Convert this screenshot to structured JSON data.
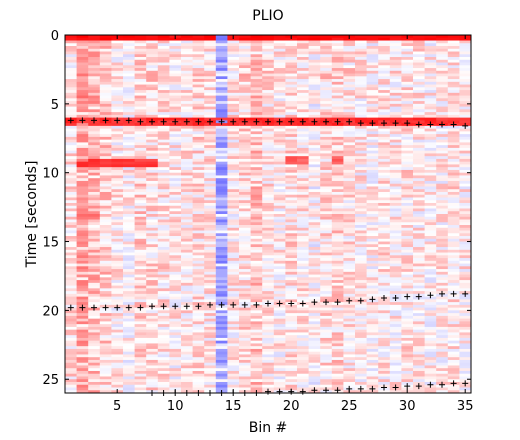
{
  "chart_data": {
    "type": "heatmap",
    "title": "PLIO",
    "xlabel": "Bin #",
    "ylabel": "Time [seconds]",
    "xlim": [
      0.5,
      35.5
    ],
    "ylim": [
      26,
      0
    ],
    "y_axis_reversed": true,
    "x_ticks": [
      5,
      10,
      15,
      20,
      25,
      30,
      35
    ],
    "y_ticks": [
      0,
      5,
      10,
      15,
      20,
      25
    ],
    "colormap": "blue-white-red (diverging)",
    "colors": {
      "negative": "#3c3cff",
      "zero": "#ffffff",
      "positive": "#ff0000"
    },
    "x_bins": 35,
    "time_rows": 130,
    "time_step_seconds": 0.2,
    "row_values": [
      0.98,
      0.92,
      0.12,
      0.1,
      0.08,
      0.14,
      0.1,
      0.06,
      0.12,
      0.1,
      0.08,
      0.1,
      0.16,
      0.18,
      0.22,
      0.2,
      0.18,
      0.14,
      0.12,
      0.1,
      0.12,
      0.14,
      0.1,
      0.08,
      0.12,
      0.1,
      0.08,
      0.06,
      0.1,
      0.12,
      0.1,
      0.08,
      0.9,
      0.06,
      0.1,
      0.08,
      0.12,
      0.1,
      0.08,
      0.06,
      0.1,
      0.08,
      0.14,
      0.16,
      0.12,
      0.1,
      0.08,
      0.06,
      0.08,
      0.1,
      0.08,
      0.06,
      0.04,
      0.06,
      0.08,
      0.1,
      0.08,
      0.06,
      0.08,
      0.1,
      0.06,
      0.04,
      0.06,
      0.08,
      0.06,
      0.04,
      0.06,
      0.08,
      0.1,
      0.08,
      0.06,
      0.08,
      0.06,
      0.04,
      0.06,
      0.08,
      0.06,
      0.04,
      0.06,
      0.08,
      0.06,
      0.04,
      0.06,
      0.08,
      0.1,
      0.08,
      0.06,
      0.04,
      0.06,
      0.08,
      0.06,
      0.04,
      0.06,
      0.08,
      0.06,
      0.04,
      0.06,
      0.08,
      0.06,
      0.04,
      0.06,
      0.04,
      0.06,
      0.08,
      0.06,
      0.04,
      0.06,
      0.08,
      0.06,
      0.04,
      0.06,
      0.04,
      0.06,
      0.08,
      0.06,
      0.04,
      0.06,
      0.08,
      0.06,
      0.04,
      0.06,
      0.04,
      0.06,
      0.08,
      0.06,
      0.04,
      0.06,
      0.08,
      0.06,
      0.04
    ],
    "column_bias": [
      0.05,
      0.35,
      0.3,
      0.2,
      0.02,
      -0.05,
      0.15,
      0.1,
      0.05,
      0.0,
      0.05,
      0.1,
      0.05,
      -0.45,
      0.02,
      0.1,
      0.25,
      0.05,
      0.0,
      0.1,
      0.05,
      -0.1,
      0.1,
      0.15,
      0.05,
      0.0,
      -0.05,
      0.05,
      0.0,
      0.05,
      0.0,
      -0.05,
      0.0,
      0.05,
      0.0
    ],
    "highlights": [
      {
        "time": 9.2,
        "bins": [
          2,
          3,
          4,
          5,
          6,
          7,
          8
        ],
        "value": 0.85
      },
      {
        "time": 6.2,
        "bins": [
          1,
          2,
          3,
          4,
          5,
          6,
          7,
          8,
          9,
          10,
          11,
          12,
          13,
          14,
          15,
          16,
          17,
          18,
          19,
          20,
          21,
          22,
          23,
          24,
          25,
          26,
          27,
          28,
          29,
          30,
          31,
          32,
          33,
          34,
          35
        ],
        "value": 0.9
      },
      {
        "time": 13.0,
        "bins": [
          2,
          3
        ],
        "value": 0.6
      },
      {
        "time": 4.6,
        "bins": [
          2,
          3
        ],
        "value": 0.6
      },
      {
        "time": 9.0,
        "bins": [
          20,
          21,
          24
        ],
        "value": 0.7
      }
    ],
    "markers": [
      {
        "symbol": "+",
        "points": [
          [
            1,
            6.2
          ],
          [
            2,
            6.2
          ],
          [
            3,
            6.2
          ],
          [
            4,
            6.2
          ],
          [
            5,
            6.2
          ],
          [
            6,
            6.2
          ],
          [
            7,
            6.3
          ],
          [
            8,
            6.3
          ],
          [
            9,
            6.3
          ],
          [
            10,
            6.3
          ],
          [
            11,
            6.3
          ],
          [
            12,
            6.3
          ],
          [
            13,
            6.3
          ],
          [
            14,
            6.3
          ],
          [
            15,
            6.3
          ],
          [
            16,
            6.3
          ],
          [
            17,
            6.3
          ],
          [
            18,
            6.3
          ],
          [
            19,
            6.3
          ],
          [
            20,
            6.3
          ],
          [
            21,
            6.3
          ],
          [
            22,
            6.3
          ],
          [
            23,
            6.3
          ],
          [
            24,
            6.3
          ],
          [
            25,
            6.3
          ],
          [
            26,
            6.4
          ],
          [
            27,
            6.4
          ],
          [
            28,
            6.4
          ],
          [
            29,
            6.4
          ],
          [
            30,
            6.4
          ],
          [
            31,
            6.5
          ],
          [
            32,
            6.5
          ],
          [
            33,
            6.5
          ],
          [
            34,
            6.5
          ],
          [
            35,
            6.6
          ]
        ]
      },
      {
        "symbol": "+",
        "points": [
          [
            1,
            19.8
          ],
          [
            2,
            19.8
          ],
          [
            3,
            19.8
          ],
          [
            4,
            19.8
          ],
          [
            5,
            19.8
          ],
          [
            6,
            19.8
          ],
          [
            7,
            19.8
          ],
          [
            8,
            19.7
          ],
          [
            9,
            19.7
          ],
          [
            10,
            19.7
          ],
          [
            11,
            19.7
          ],
          [
            12,
            19.7
          ],
          [
            13,
            19.6
          ],
          [
            14,
            19.6
          ],
          [
            15,
            19.6
          ],
          [
            16,
            19.6
          ],
          [
            17,
            19.6
          ],
          [
            18,
            19.5
          ],
          [
            19,
            19.5
          ],
          [
            20,
            19.5
          ],
          [
            21,
            19.5
          ],
          [
            22,
            19.4
          ],
          [
            23,
            19.4
          ],
          [
            24,
            19.4
          ],
          [
            25,
            19.3
          ],
          [
            26,
            19.3
          ],
          [
            27,
            19.2
          ],
          [
            28,
            19.1
          ],
          [
            29,
            19.1
          ],
          [
            30,
            19.0
          ],
          [
            31,
            19.0
          ],
          [
            32,
            18.9
          ],
          [
            33,
            18.8
          ],
          [
            34,
            18.8
          ],
          [
            35,
            18.8
          ]
        ]
      },
      {
        "symbol": "+",
        "points": [
          [
            8,
            26.0
          ],
          [
            9,
            26.0
          ],
          [
            10,
            26.0
          ],
          [
            11,
            26.0
          ],
          [
            12,
            26.0
          ],
          [
            13,
            26.0
          ],
          [
            14,
            26.0
          ],
          [
            15,
            26.0
          ],
          [
            16,
            26.0
          ],
          [
            17,
            26.0
          ],
          [
            18,
            25.9
          ],
          [
            19,
            25.9
          ],
          [
            20,
            25.9
          ],
          [
            21,
            25.9
          ],
          [
            22,
            25.8
          ],
          [
            23,
            25.8
          ],
          [
            24,
            25.8
          ],
          [
            25,
            25.7
          ],
          [
            26,
            25.7
          ],
          [
            27,
            25.7
          ],
          [
            28,
            25.6
          ],
          [
            29,
            25.6
          ],
          [
            30,
            25.5
          ],
          [
            31,
            25.5
          ],
          [
            32,
            25.4
          ],
          [
            33,
            25.4
          ],
          [
            34,
            25.3
          ],
          [
            35,
            25.3
          ]
        ]
      }
    ]
  }
}
